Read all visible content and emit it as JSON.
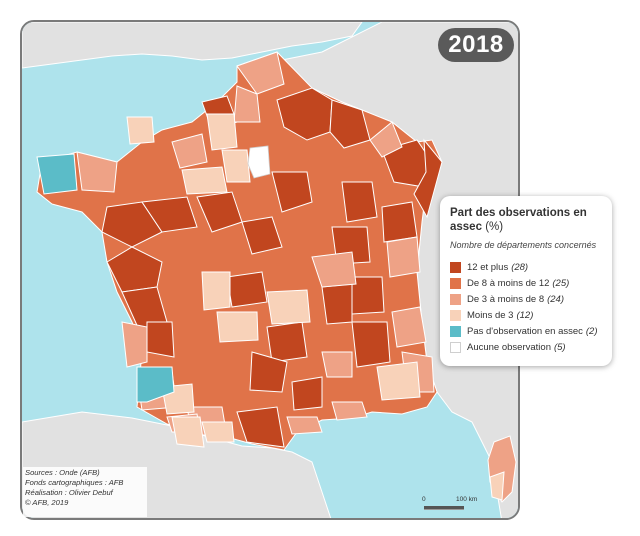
{
  "map": {
    "year": "2018",
    "legend": {
      "title": "Part des observations en assec",
      "unit": "(%)",
      "subtitle": "Nombre de départements concernés",
      "items": [
        {
          "label": "12 et plus",
          "count": "(28)",
          "color": "#c1461f"
        },
        {
          "label": "De 8 à moins de 12",
          "count": "(25)",
          "color": "#e07349"
        },
        {
          "label": "De 3 à moins de 8",
          "count": "(24)",
          "color": "#eea286"
        },
        {
          "label": "Moins de 3",
          "count": "(12)",
          "color": "#f8d2b9"
        },
        {
          "label": "Pas d'observation en assec",
          "count": "(2)",
          "color": "#5bbcc8"
        },
        {
          "label": "Aucune observation",
          "count": "(5)",
          "color": "#ffffff"
        }
      ]
    },
    "credits": [
      "Sources : Onde (AFB)",
      "Fonds cartographiques : AFB",
      "Réalisation : Olivier Debuf",
      "© AFB, 2019"
    ],
    "scale": {
      "start": "0",
      "end": "100 km"
    },
    "colors": {
      "sea": "#aee3ec",
      "land_other": "#e1e1e1",
      "border": "#ffffff",
      "frame": "#7a7a7a"
    }
  }
}
